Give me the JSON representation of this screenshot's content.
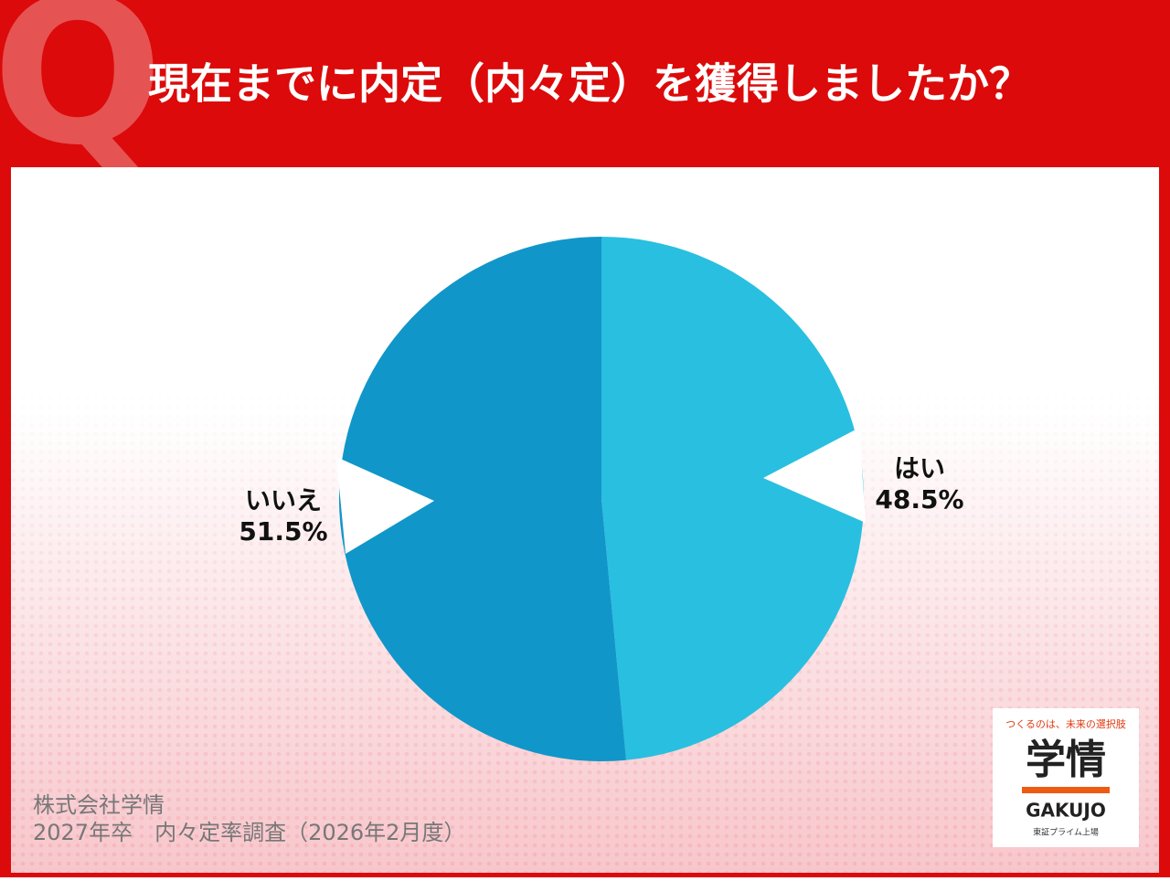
{
  "q_mark": "Q",
  "chart_data": {
    "type": "pie",
    "title": "現在までに内定（内々定）を獲得しましたか？",
    "categories": [
      "はい",
      "いいえ"
    ],
    "values": [
      48.5,
      51.5
    ],
    "value_labels": [
      "48.5%",
      "51.5%"
    ],
    "colors": [
      "#29bfe0",
      "#1196c9"
    ]
  },
  "source": [
    "株式会社学情",
    "2027年卒　内々定率調査（2026年2月度）"
  ],
  "logo": {
    "tagline": "つくるのは、未来の選択肢",
    "name": "学情",
    "roman": "GAKUJO",
    "listing": "東証プライム上場"
  }
}
